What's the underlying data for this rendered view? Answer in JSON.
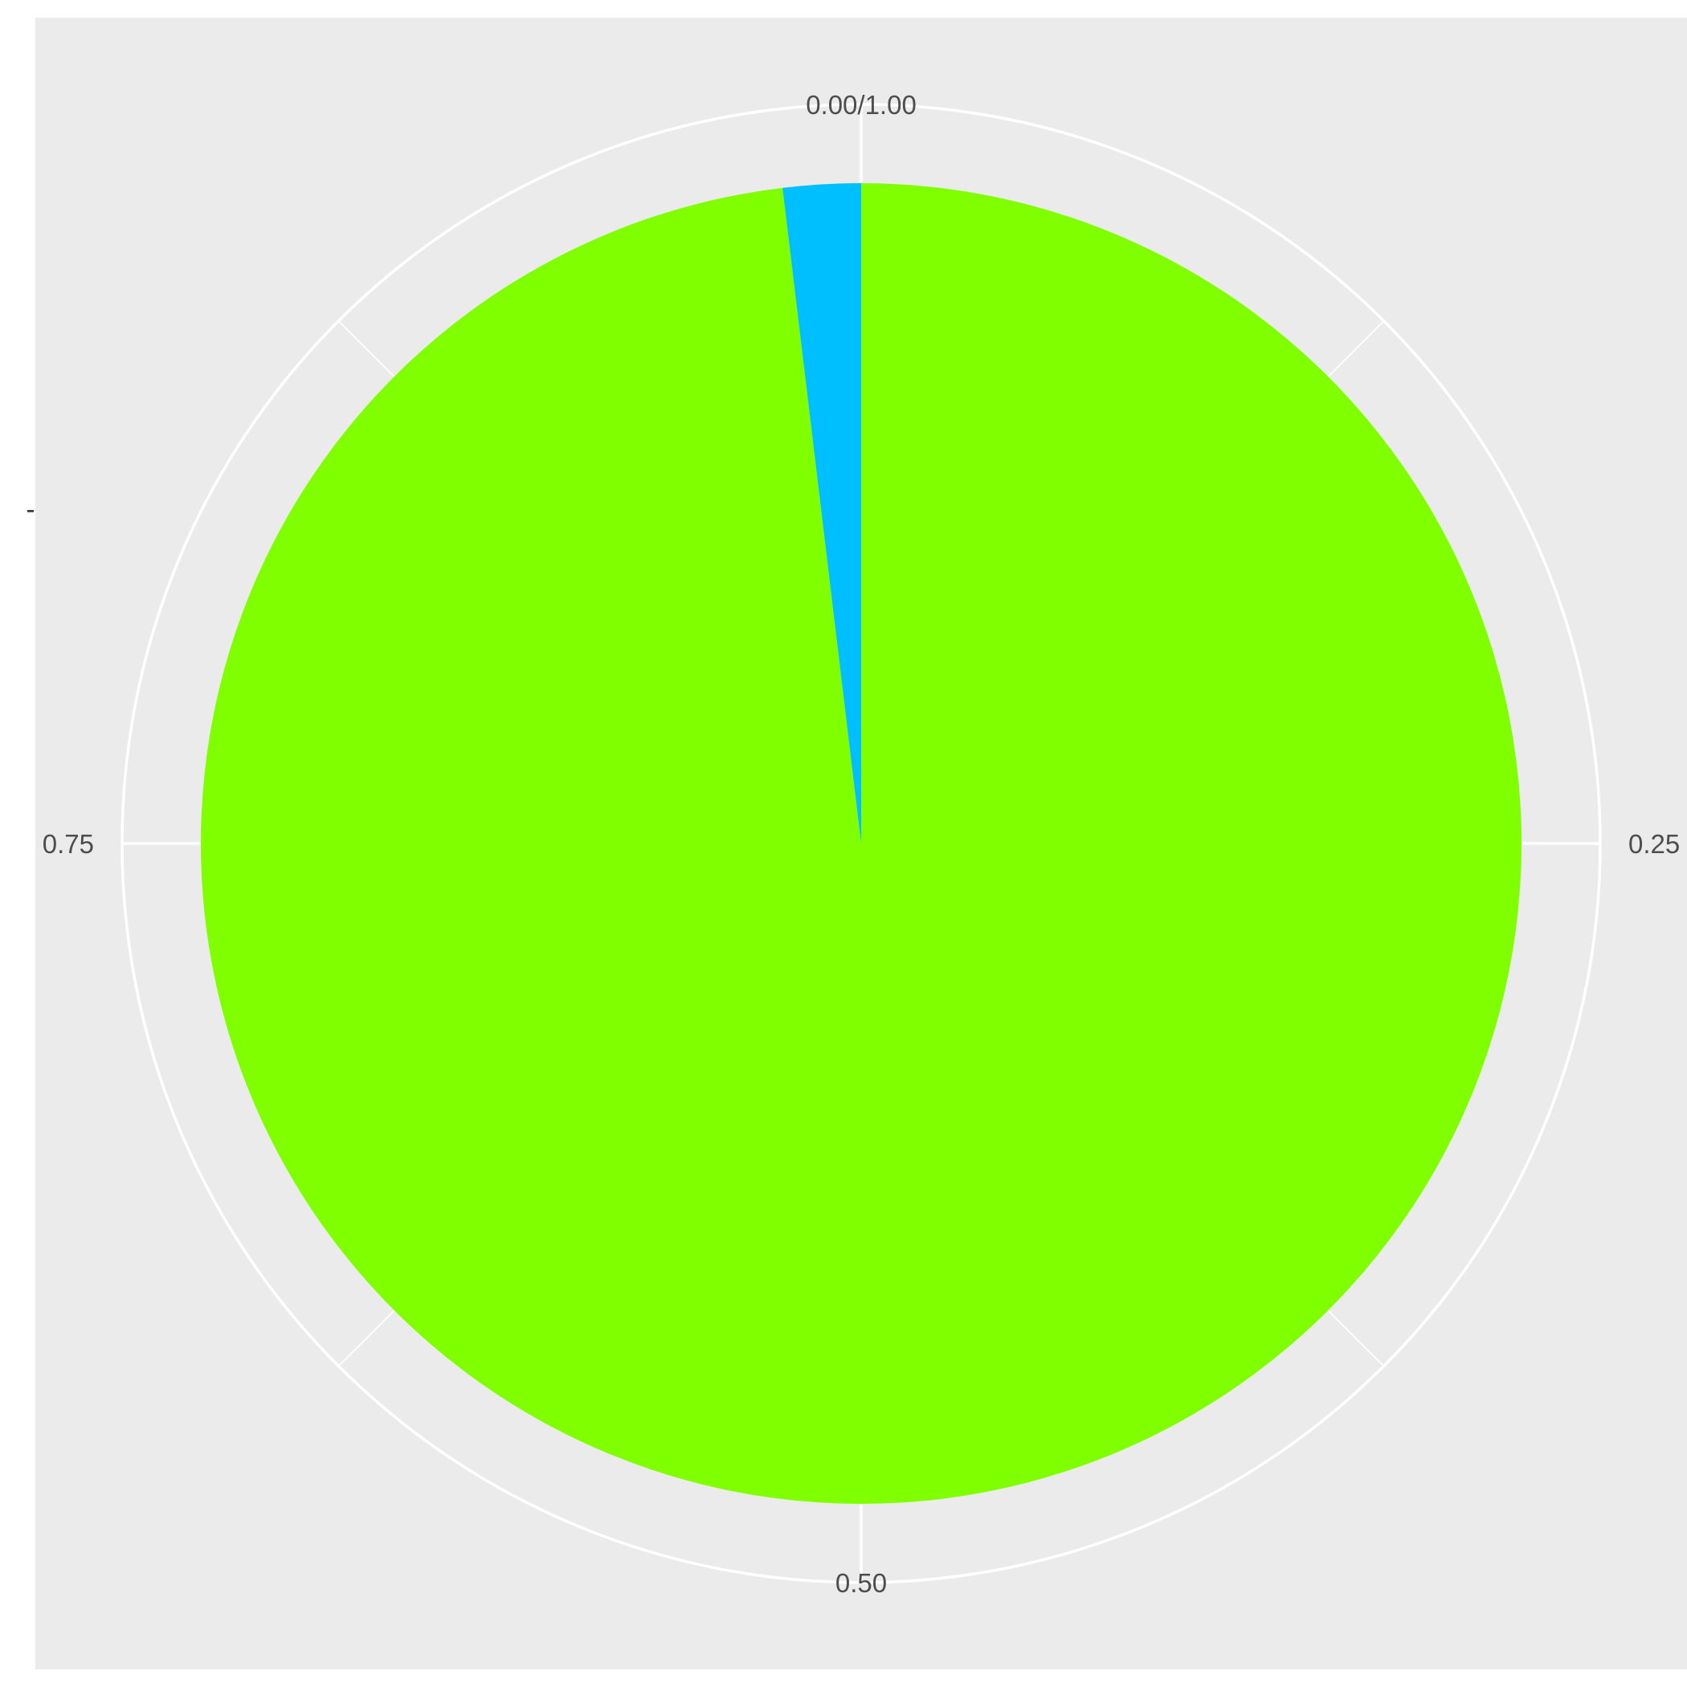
{
  "chart_data": {
    "type": "pie",
    "title": "",
    "xlabel": "",
    "ylabel": "",
    "slices": [
      {
        "value": 0.981,
        "color": "#7FFF00"
      },
      {
        "value": 0.019,
        "color": "#00BFFF"
      }
    ],
    "angular_ticks": [
      {
        "value": 0,
        "label": "0.00/1.00"
      },
      {
        "value": 0.25,
        "label": "0.25"
      },
      {
        "value": 0.5,
        "label": "0.50"
      },
      {
        "value": 0.75,
        "label": "0.75"
      }
    ],
    "y_axis_tick_label": "-",
    "panel_background": "#EBEBEB",
    "grid_color": "#FFFFFF",
    "grid": true,
    "legend": "none"
  }
}
